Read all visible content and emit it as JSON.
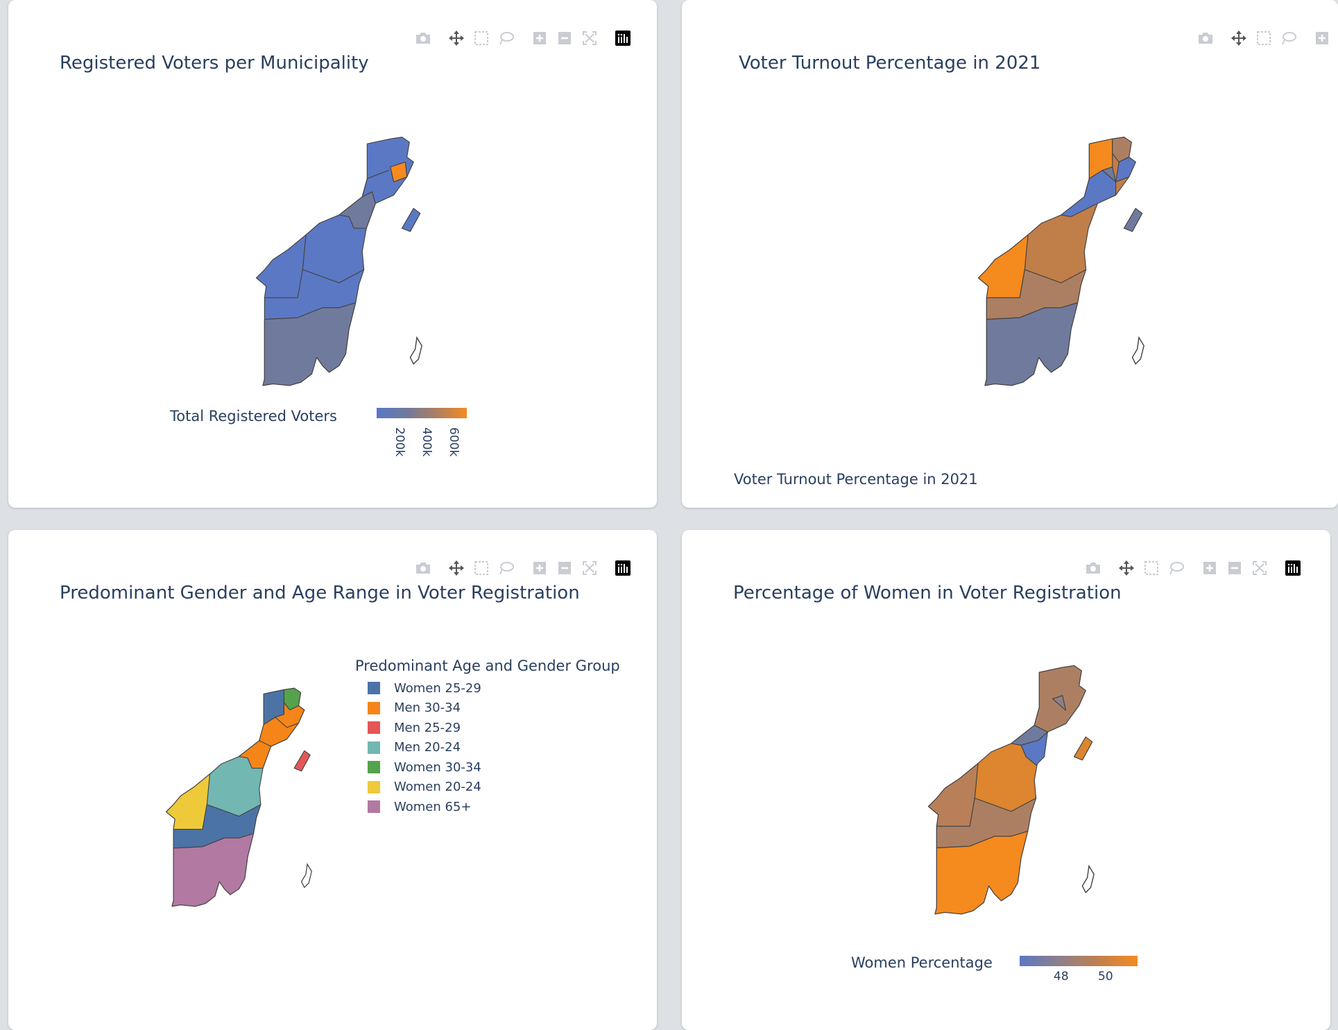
{
  "colors": {
    "blue": "#5b78c4",
    "slate": "#707a9c",
    "orange": "#f58a1f",
    "brown_light": "#ad7f62",
    "brown": "#c07e49",
    "cat_blue": "#4c73a6",
    "cat_orange": "#f58518",
    "cat_red": "#e45756",
    "cat_teal": "#72b7b2",
    "cat_green": "#54a24b",
    "cat_yellow": "#eeca3b",
    "cat_pink": "#b279a2"
  },
  "modebar_icons": [
    "camera-icon",
    "pan-icon",
    "box-select-icon",
    "lasso-icon",
    "zoom-in-icon",
    "zoom-out-icon",
    "autoscale-icon",
    "plotly-logo-icon"
  ],
  "chart1": {
    "title": "Registered Voters per Municipality",
    "colorbar_title": "Total Registered Voters",
    "ticks": [
      "200k",
      "400k",
      "600k"
    ]
  },
  "chart2": {
    "title": "Voter Turnout Percentage in 2021",
    "bottom_label": "Voter Turnout Percentage in 2021"
  },
  "chart3": {
    "title": "Predominant Gender and Age Range in Voter Registration",
    "legend_title": "Predominant Age and Gender Group",
    "legend_items": [
      {
        "label": "Women 25-29",
        "color": "#4c73a6"
      },
      {
        "label": "Men 30-34",
        "color": "#f58518"
      },
      {
        "label": "Men 25-29",
        "color": "#e45756"
      },
      {
        "label": "Men 20-24",
        "color": "#72b7b2"
      },
      {
        "label": "Women 30-34",
        "color": "#54a24b"
      },
      {
        "label": "Women 20-24",
        "color": "#eeca3b"
      },
      {
        "label": "Women 65+",
        "color": "#b279a2"
      }
    ]
  },
  "chart4": {
    "title": "Percentage of Women in Voter Registration",
    "colorbar_title": "Women Percentage",
    "ticks": [
      "48",
      "50"
    ]
  }
}
